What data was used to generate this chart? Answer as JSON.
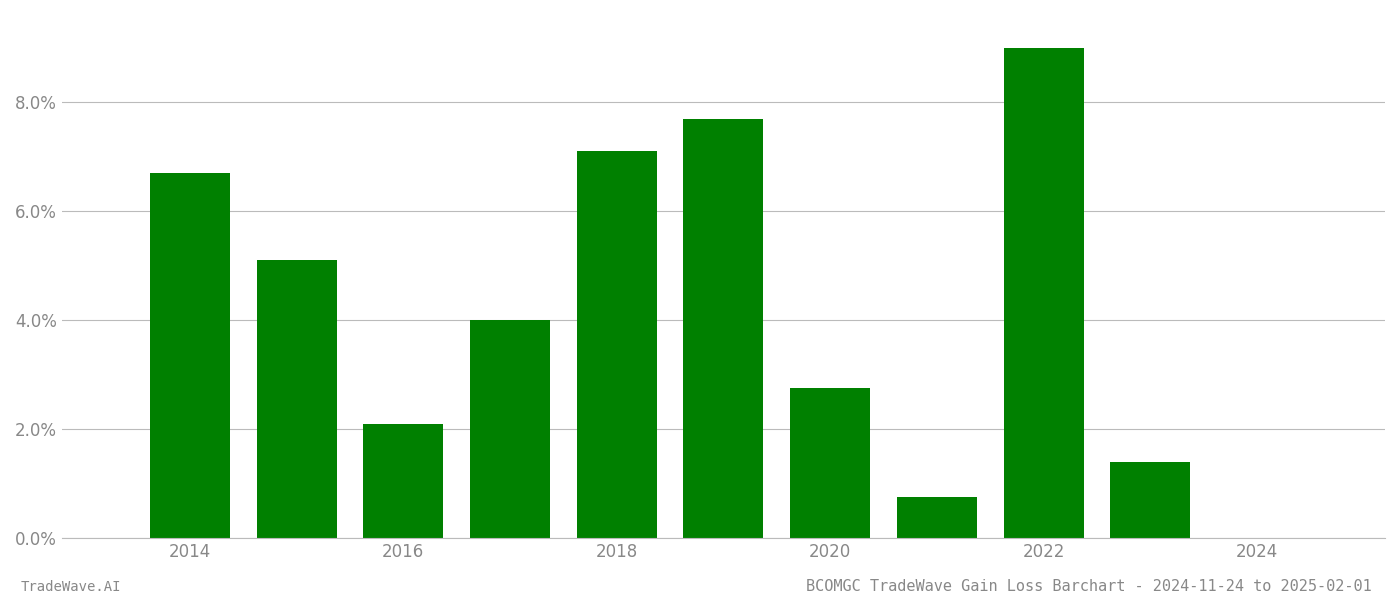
{
  "years": [
    2014,
    2015,
    2016,
    2017,
    2018,
    2019,
    2020,
    2021,
    2022,
    2023
  ],
  "values": [
    0.067,
    0.051,
    0.021,
    0.04,
    0.071,
    0.077,
    0.0275,
    0.0075,
    0.09,
    0.014
  ],
  "bar_color": "#008000",
  "title": "BCOMGC TradeWave Gain Loss Barchart - 2024-11-24 to 2025-02-01",
  "footer_left": "TradeWave.AI",
  "ylim": [
    0,
    0.096
  ],
  "yticks": [
    0.0,
    0.02,
    0.04,
    0.06,
    0.08
  ],
  "xlim_left": 2012.8,
  "xlim_right": 2025.2,
  "xtick_years": [
    2014,
    2016,
    2018,
    2020,
    2022,
    2024
  ],
  "background_color": "#ffffff",
  "grid_color": "#bbbbbb",
  "title_fontsize": 11,
  "footer_fontsize": 10,
  "tick_fontsize": 12,
  "tick_color": "#888888",
  "bar_width": 0.75
}
